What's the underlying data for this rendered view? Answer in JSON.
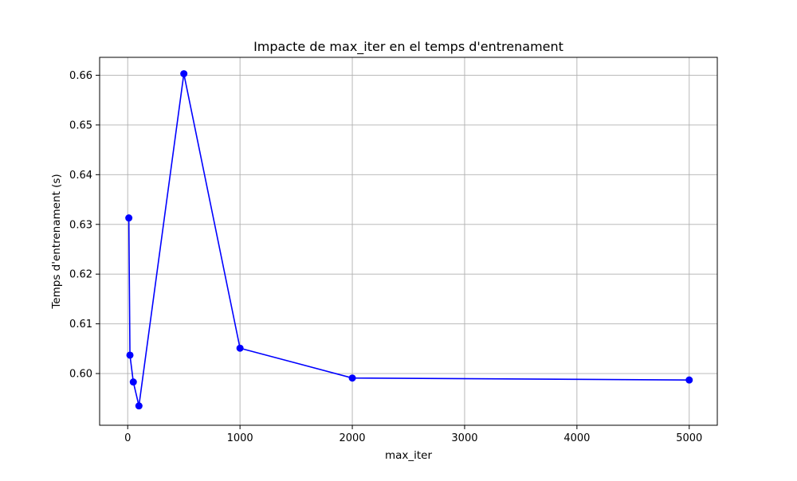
{
  "chart_data": {
    "type": "line",
    "title": "Impacte de max_iter en el temps d'entrenament",
    "xlabel": "max_iter",
    "ylabel": "Temps d'entrenament (s)",
    "xlim": [
      -250,
      5250
    ],
    "ylim": [
      0.5896,
      0.6636
    ],
    "xticks": [
      0,
      1000,
      2000,
      3000,
      4000,
      5000
    ],
    "yticks": [
      0.6,
      0.61,
      0.62,
      0.63,
      0.64,
      0.65,
      0.66
    ],
    "grid": true,
    "series": [
      {
        "color": "#0000ff",
        "marker": "circle",
        "x": [
          10,
          20,
          50,
          100,
          500,
          1000,
          2000,
          5000
        ],
        "y": [
          0.6313,
          0.6037,
          0.5983,
          0.5935,
          0.6603,
          0.6051,
          0.5991,
          0.5987
        ]
      }
    ]
  }
}
